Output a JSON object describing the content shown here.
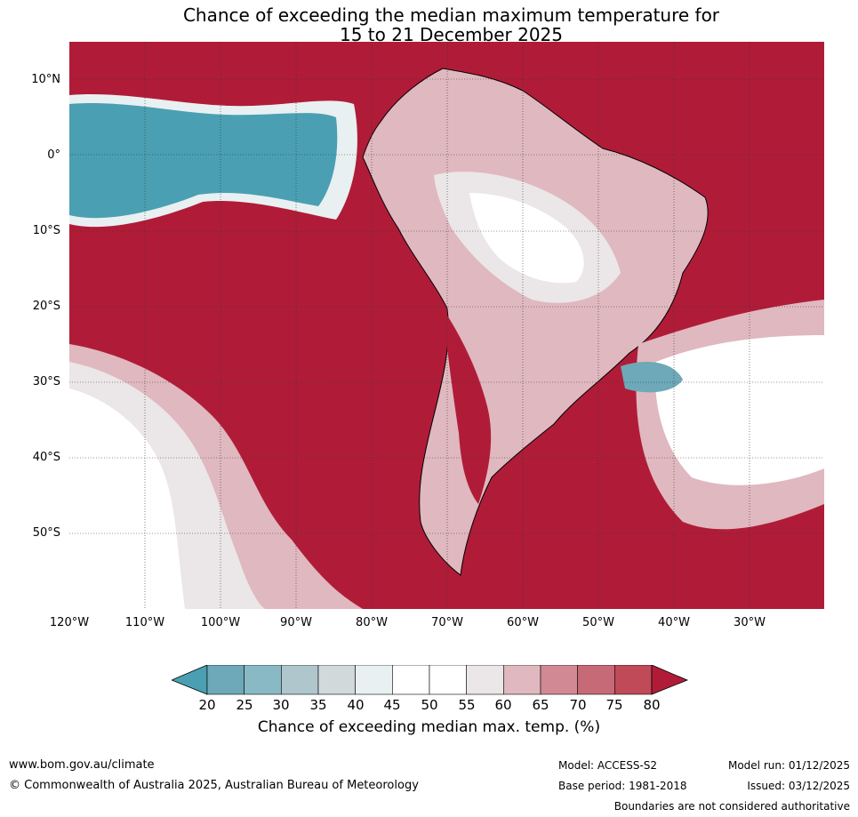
{
  "title": {
    "line1": "Chance of exceeding the median maximum temperature for",
    "line2": "15 to 21 December 2025"
  },
  "map": {
    "lat_labels": [
      "10°N",
      "0°",
      "10°S",
      "20°S",
      "30°S",
      "40°S",
      "50°S"
    ],
    "lon_labels": [
      "120°W",
      "110°W",
      "100°W",
      "90°W",
      "80°W",
      "70°W",
      "60°W",
      "50°W",
      "40°W",
      "30°W"
    ],
    "base_color": "#b01c38",
    "cool_color": "#4aa0b2"
  },
  "legend": {
    "ticks": [
      "20",
      "25",
      "30",
      "35",
      "40",
      "45",
      "50",
      "55",
      "60",
      "65",
      "70",
      "75",
      "80"
    ],
    "colors": [
      "#4aa0b2",
      "#6da9b8",
      "#8ab9c6",
      "#aec6cc",
      "#d1d9db",
      "#e9f0f2",
      "#ffffff",
      "#ffffff",
      "#ebe6e7",
      "#e0b8bf",
      "#d18a94",
      "#c76a77",
      "#c04a58",
      "#b01c38"
    ],
    "label": "Chance of exceeding median max. temp. (%)"
  },
  "footer": {
    "url": "www.bom.gov.au/climate",
    "copyright": "© Commonwealth of Australia 2025, Australian Bureau of Meteorology",
    "model": "Model: ACCESS-S2",
    "base_period": "Base period: 1981-2018",
    "model_run": "Model run: 01/12/2025",
    "issued": "Issued: 03/12/2025",
    "boundaries": "Boundaries are not considered authoritative"
  }
}
